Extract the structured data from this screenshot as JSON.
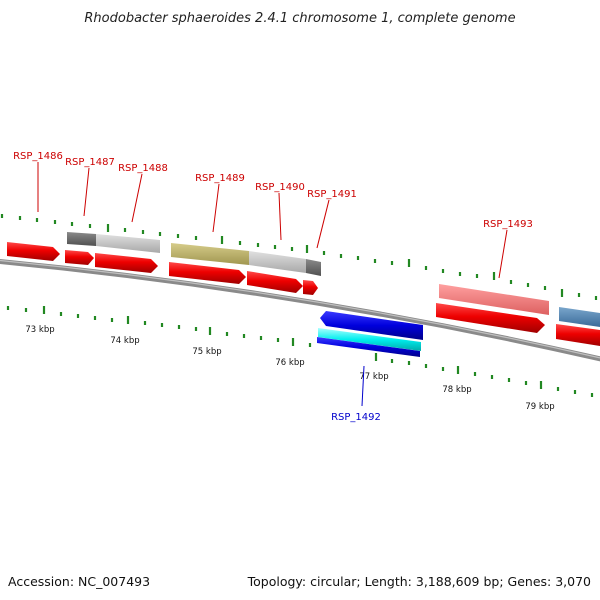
{
  "title": "Rhodobacter sphaeroides 2.4.1 chromosome 1, complete genome",
  "footer": {
    "accession": "Accession: NC_007493",
    "topology": "Topology: circular; Length: 3,188,609 bp; Genes: 3,070"
  },
  "scale_labels": [
    "73 kbp",
    "74 kbp",
    "75 kbp",
    "76 kbp",
    "77 kbp",
    "78 kbp",
    "79 kbp"
  ],
  "gene_labels": [
    {
      "text": "RSP_1486",
      "color": "#cc0000"
    },
    {
      "text": "RSP_1487",
      "color": "#cc0000"
    },
    {
      "text": "RSP_1488",
      "color": "#cc0000"
    },
    {
      "text": "RSP_1489",
      "color": "#cc0000"
    },
    {
      "text": "RSP_1490",
      "color": "#cc0000"
    },
    {
      "text": "RSP_1491",
      "color": "#cc0000"
    },
    {
      "text": "RSP_1493",
      "color": "#cc0000"
    },
    {
      "text": "RSP_1492",
      "color": "#0000cc"
    }
  ],
  "colors": {
    "forward_cds": "#ee0000",
    "reverse_cds": "#0000dd",
    "tick": "#228822",
    "backbone": "#8a8a8a"
  }
}
